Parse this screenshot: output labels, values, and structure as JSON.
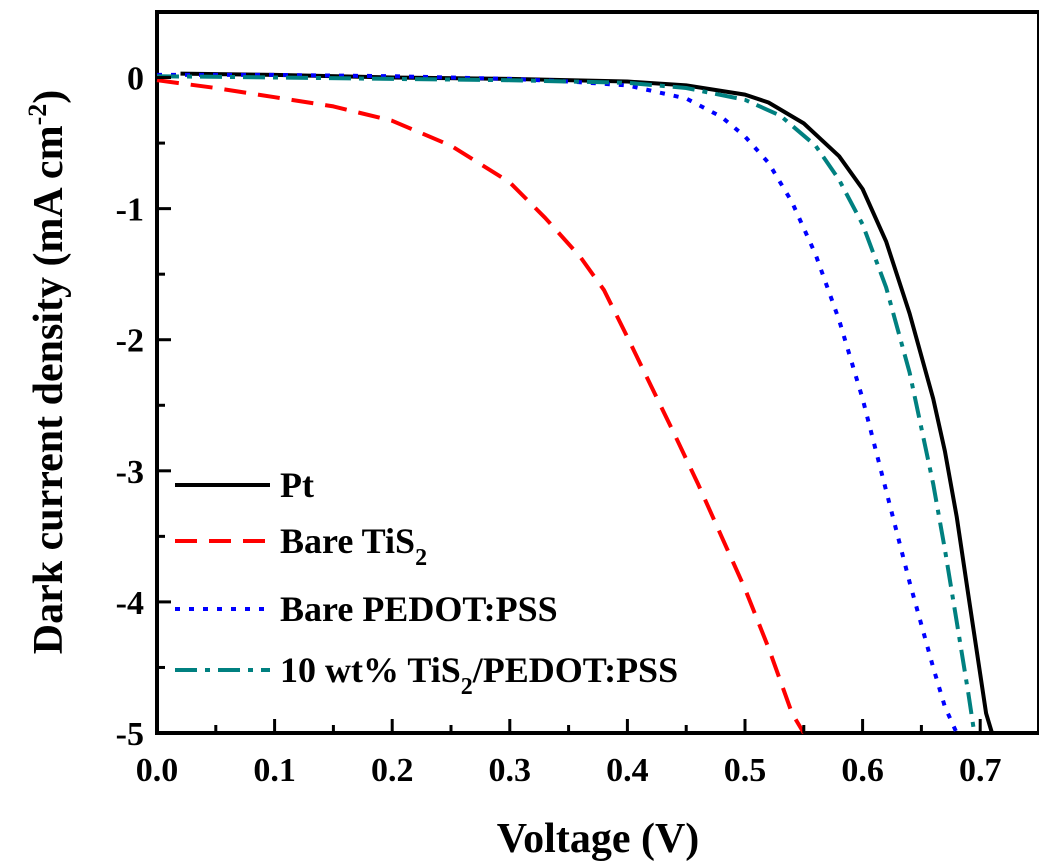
{
  "chart_data": {
    "type": "line",
    "xlabel": "Voltage (V)",
    "ylabel": {
      "main": "Dark current density (mA cm",
      "sup": "-2",
      "close": ")"
    },
    "xlim": [
      0.0,
      0.75
    ],
    "ylim": [
      -5,
      0.5
    ],
    "x_ticks": [
      "0.0",
      "0.1",
      "0.2",
      "0.3",
      "0.4",
      "0.5",
      "0.6",
      "0.7"
    ],
    "y_ticks": [
      "0",
      "-1",
      "-2",
      "-3",
      "-4",
      "-5"
    ],
    "grid": false,
    "legend_position": "bottom-left",
    "series": [
      {
        "name": "Pt",
        "legend": {
          "text": "Pt",
          "sub": "",
          "rest": ""
        },
        "color": "#000000",
        "dash": "solid",
        "x": [
          0.02,
          0.1,
          0.2,
          0.3,
          0.4,
          0.45,
          0.5,
          0.52,
          0.55,
          0.58,
          0.6,
          0.62,
          0.64,
          0.66,
          0.67,
          0.68,
          0.69,
          0.7,
          0.705,
          0.71
        ],
        "y": [
          0.03,
          0.02,
          0.0,
          -0.01,
          -0.03,
          -0.06,
          -0.13,
          -0.19,
          -0.35,
          -0.6,
          -0.85,
          -1.25,
          -1.8,
          -2.45,
          -2.85,
          -3.35,
          -3.95,
          -4.55,
          -4.85,
          -5.0
        ]
      },
      {
        "name": "Bare TiS2",
        "legend": {
          "text": "Bare TiS",
          "sub": "2",
          "rest": ""
        },
        "color": "#ff0000",
        "dash": "dashed",
        "x": [
          0.0,
          0.05,
          0.1,
          0.15,
          0.2,
          0.25,
          0.3,
          0.33,
          0.36,
          0.38,
          0.4,
          0.42,
          0.44,
          0.46,
          0.48,
          0.5,
          0.52,
          0.53,
          0.54,
          0.55
        ],
        "y": [
          -0.02,
          -0.08,
          -0.15,
          -0.22,
          -0.33,
          -0.52,
          -0.8,
          -1.07,
          -1.37,
          -1.62,
          -1.98,
          -2.35,
          -2.72,
          -3.1,
          -3.5,
          -3.9,
          -4.35,
          -4.6,
          -4.85,
          -5.0
        ]
      },
      {
        "name": "Bare PEDOT:PSS",
        "legend": {
          "text": "Bare PEDOT:PSS",
          "sub": "",
          "rest": ""
        },
        "color": "#0000ff",
        "dash": "dotted",
        "x": [
          0.0,
          0.1,
          0.2,
          0.3,
          0.35,
          0.4,
          0.45,
          0.48,
          0.5,
          0.52,
          0.54,
          0.56,
          0.58,
          0.6,
          0.62,
          0.64,
          0.66,
          0.67,
          0.675,
          0.68
        ],
        "y": [
          0.02,
          0.02,
          0.01,
          -0.01,
          -0.03,
          -0.06,
          -0.16,
          -0.3,
          -0.45,
          -0.65,
          -0.95,
          -1.35,
          -1.85,
          -2.45,
          -3.15,
          -3.85,
          -4.5,
          -4.8,
          -4.9,
          -5.0
        ]
      },
      {
        "name": "10 wt% TiS2/PEDOT:PSS",
        "legend": {
          "text": "10 wt% TiS",
          "sub": "2",
          "rest": "/PEDOT:PSS"
        },
        "color": "#008080",
        "dash": "dashdot",
        "x": [
          0.0,
          0.1,
          0.2,
          0.3,
          0.4,
          0.45,
          0.5,
          0.53,
          0.56,
          0.58,
          0.6,
          0.62,
          0.64,
          0.66,
          0.67,
          0.68,
          0.69,
          0.695
        ],
        "y": [
          0.01,
          0.0,
          -0.01,
          -0.02,
          -0.04,
          -0.08,
          -0.17,
          -0.29,
          -0.52,
          -0.78,
          -1.12,
          -1.6,
          -2.25,
          -3.1,
          -3.6,
          -4.15,
          -4.7,
          -5.0
        ]
      }
    ]
  }
}
